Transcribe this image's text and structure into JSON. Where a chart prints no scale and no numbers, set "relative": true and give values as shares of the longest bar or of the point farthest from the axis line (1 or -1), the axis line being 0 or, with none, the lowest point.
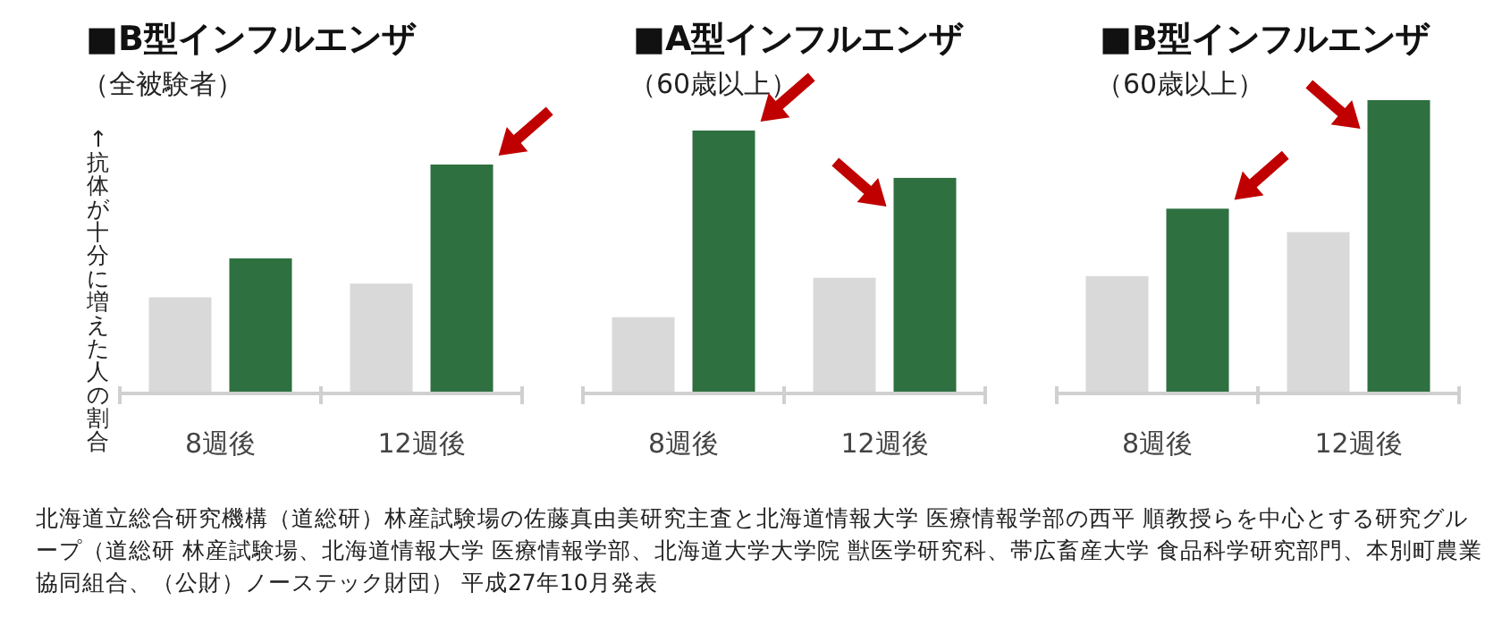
{
  "chart_data": [
    {
      "type": "bar",
      "title": "■B型インフルエンザ",
      "subtitle": "（全被験者）",
      "ylabel": "↑抗体が十分に増えた人の割合",
      "categories": [
        "8週後",
        "12週後"
      ],
      "relative": true,
      "series": [
        {
          "color": "#d9d9d9",
          "values": [
            0.42,
            0.48
          ]
        },
        {
          "color": "#2e7040",
          "values": [
            0.59,
            1
          ]
        }
      ],
      "annotations": [
        "北海道立総合研究機構（道総研）林産試験場の佐藤真由美研究主査と北海道情報大学 医療情報学部の西平 順教授らを中心とする研究グループ（道総研 林産試験場、北海道情報大学 医療情報学部、北海道大学大学院 獣医学研究科、帯広畜産大学 食品科学研究部門、本別町農業協同組合、（公財）ノーステック財団） 平成27年10月発表"
      ]
    },
    {
      "type": "bar",
      "title": "■A型インフルエンザ",
      "subtitle": "（60歳以上）",
      "categories": [
        "8週後",
        "12週後"
      ],
      "relative": true,
      "series": [
        {
          "color": "#d9d9d9",
          "values": [
            0.29,
            0.44
          ]
        },
        {
          "color": "#2e7040",
          "values": [
            1,
            0.82
          ]
        }
      ]
    },
    {
      "type": "bar",
      "title": "■B型インフルエンザ",
      "subtitle": "（60歳以上）",
      "categories": [
        "8週後",
        "12週後"
      ],
      "relative": true,
      "series": [
        {
          "color": "#d9d9d9",
          "values": [
            0.4,
            0.55
          ]
        },
        {
          "color": "#2e7040",
          "values": [
            0.63,
            1
          ]
        }
      ]
    }
  ]
}
